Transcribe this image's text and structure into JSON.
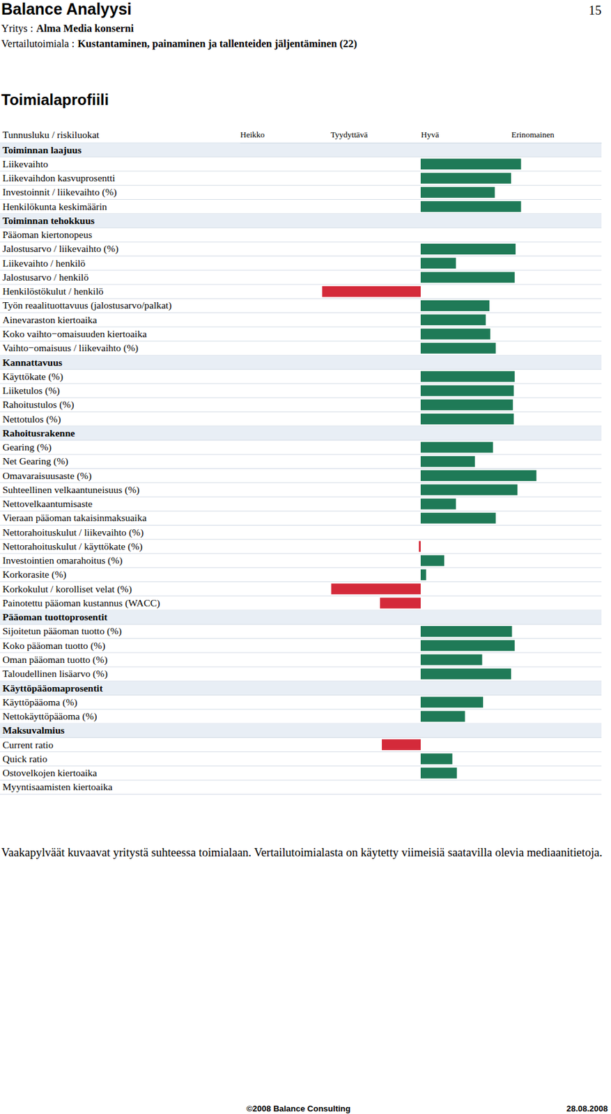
{
  "page": {
    "title": "Balance Analyysi",
    "page_number": "15",
    "company_label": "Yritys :",
    "company": "Alma Media konserni",
    "industry_label": "Vertailutoimiala :",
    "industry": "Kustantaminen, painaminen ja tallenteiden jäljentäminen (22)",
    "footnote": "Vaakapylväät kuvaavat yritystä suhteessa toimialaan. Vertailutoimialasta on käytetty viimeisiä saatavilla olevia mediaanitietoja.",
    "copyright": "©2008 Balance Consulting",
    "date": "28.08.2008"
  },
  "chart_data": {
    "type": "bar",
    "orientation": "horizontal",
    "title": "Toimialaprofiili",
    "ylabel": "Tunnusluku / riskiluokat",
    "xlim": [
      -2,
      2
    ],
    "xticks": [
      {
        "value": -2,
        "label": "Heikko"
      },
      {
        "value": -1,
        "label": "Tyydyttävä"
      },
      {
        "value": 0,
        "label": "Hyvä"
      },
      {
        "value": 1,
        "label": "Erinomainen"
      }
    ],
    "groups": [
      {
        "name": "Toiminnan laajuus",
        "categories": [
          "Liikevaihto",
          "Liikevaihdon kasvuprosentti",
          "Investoinnit / liikevaihto (%)",
          "Henkilökunta keskimäärin"
        ],
        "values": [
          1.11,
          1.0,
          0.82,
          1.11
        ],
        "colors": [
          "#1f7a57",
          "#1f7a57",
          "#1f7a57",
          "#1f7a57"
        ]
      },
      {
        "name": "Toiminnan tehokkuus",
        "categories": [
          "Pääoman kiertonopeus",
          "Jalostusarvo / liikevaihto (%)",
          "Liikevaihto / henkilö",
          "Jalostusarvo / henkilö",
          "Henkilöstökulut / henkilö",
          "Työn reaalituottavuus (jalostusarvo/palkat)",
          "Ainevaraston kiertoaika",
          "Koko vaihto−omaisuuden kiertoaika",
          "Vaihto−omaisuus / liikevaihto (%)"
        ],
        "values": [
          0,
          1.05,
          0.39,
          1.04,
          -1.09,
          0.76,
          0.72,
          0.77,
          0.83
        ],
        "colors": [
          "#1f7a57",
          "#1f7a57",
          "#1f7a57",
          "#1f7a57",
          "#d42a3a",
          "#1f7a57",
          "#1f7a57",
          "#1f7a57",
          "#1f7a57"
        ]
      },
      {
        "name": "Kannattavuus",
        "categories": [
          "Käyttökate (%)",
          "Liiketulos (%)",
          "Rahoitustulos (%)",
          "Nettotulos (%)"
        ],
        "values": [
          1.04,
          1.03,
          1.02,
          1.03
        ],
        "colors": [
          "#1f7a57",
          "#1f7a57",
          "#1f7a57",
          "#1f7a57"
        ]
      },
      {
        "name": "Rahoitusrakenne",
        "categories": [
          "Gearing (%)",
          "Net Gearing (%)",
          "Omavaraisuusaste (%)",
          "Suhteellinen velkaantuneisuus (%)",
          "Nettovelkaantumisaste",
          "Vieraan pääoman takaisinmaksuaika",
          "Nettorahoituskulut / liikevaihto (%)",
          "Nettorahoituskulut / käyttökate (%)",
          "Investointien omarahoitus (%)",
          "Korkorasite (%)",
          "Korkokulut / korolliset velat (%)",
          "Painotettu pääoman kustannus (WACC)"
        ],
        "values": [
          0.8,
          0.6,
          1.28,
          1.07,
          0.39,
          0.83,
          0,
          -0.02,
          0.26,
          0.06,
          -0.99,
          -0.45
        ],
        "colors": [
          "#1f7a57",
          "#1f7a57",
          "#1f7a57",
          "#1f7a57",
          "#1f7a57",
          "#1f7a57",
          "#1f7a57",
          "#d42a3a",
          "#1f7a57",
          "#1f7a57",
          "#d42a3a",
          "#d42a3a"
        ]
      },
      {
        "name": "Pääoman tuottoprosentit",
        "categories": [
          "Sijoitetun pääoman tuotto (%)",
          "Koko pääoman tuotto (%)",
          "Oman pääoman tuotto (%)",
          "Taloudellinen lisäarvo (%)"
        ],
        "values": [
          1.01,
          1.04,
          0.68,
          1.0
        ],
        "colors": [
          "#1f7a57",
          "#1f7a57",
          "#1f7a57",
          "#1f7a57"
        ]
      },
      {
        "name": "Käyttöpääomaprosentit",
        "categories": [
          "Käyttöpääoma (%)",
          "Nettokäyttöpääoma (%)"
        ],
        "values": [
          0.69,
          0.49
        ],
        "colors": [
          "#1f7a57",
          "#1f7a57"
        ]
      },
      {
        "name": "Maksuvalmius",
        "categories": [
          "Current ratio",
          "Quick ratio",
          "Ostovelkojen kiertoaika",
          "Myyntisaamisten kiertoaika"
        ],
        "values": [
          -0.43,
          0.35,
          0.4,
          0
        ],
        "colors": [
          "#d42a3a",
          "#1f7a57",
          "#1f7a57",
          "#1f7a57"
        ]
      }
    ]
  }
}
